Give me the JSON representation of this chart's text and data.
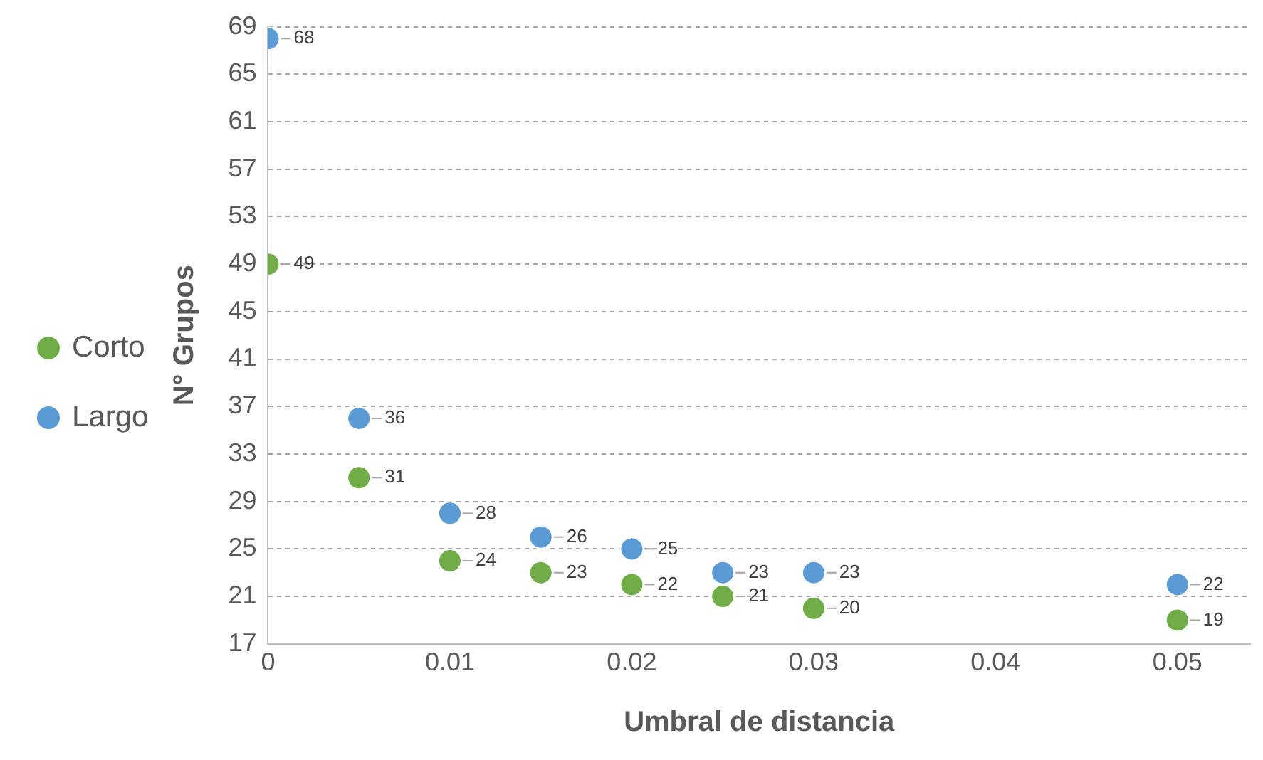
{
  "chart_data": {
    "type": "scatter",
    "xlabel": "Umbral de distancia",
    "ylabel": "N° Grupos",
    "x": [
      0,
      0.005,
      0.01,
      0.015,
      0.02,
      0.025,
      0.03,
      0.05
    ],
    "series": [
      {
        "name": "Corto",
        "color": "#70ad47",
        "values": [
          49,
          31,
          24,
          23,
          22,
          21,
          20,
          19
        ]
      },
      {
        "name": "Largo",
        "color": "#5b9bd5",
        "values": [
          68,
          36,
          28,
          26,
          25,
          23,
          23,
          22
        ]
      }
    ],
    "xlim": [
      0,
      0.054
    ],
    "xticks": [
      0,
      0.01,
      0.02,
      0.03,
      0.04,
      0.05
    ],
    "ylim": [
      17,
      69
    ],
    "yticks": [
      17,
      21,
      25,
      29,
      33,
      37,
      41,
      45,
      49,
      53,
      57,
      61,
      65,
      69
    ],
    "grid": "y",
    "legend": "left",
    "marker": "circle",
    "data_labels": true
  }
}
